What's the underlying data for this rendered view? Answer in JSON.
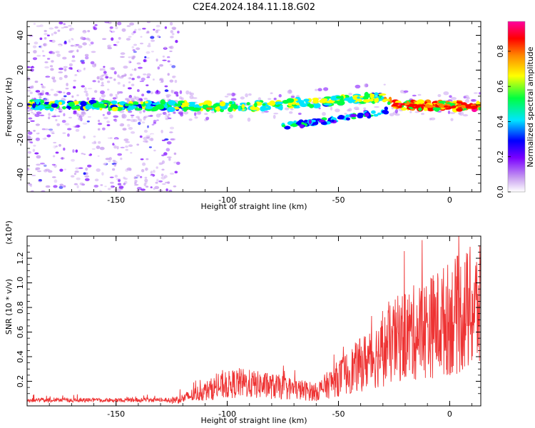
{
  "title": "C2E4.2024.184.11.18.G02",
  "chart_data": [
    {
      "type": "heatmap",
      "xlabel": "Height of straight line (km)",
      "ylabel": "Frequency (Hz)",
      "xlim": [
        -190,
        14
      ],
      "ylim": [
        -50,
        48
      ],
      "xticks": [
        -150,
        -100,
        -50,
        0
      ],
      "yticks": [
        -40,
        -20,
        0,
        20,
        40
      ],
      "colorbar": {
        "label": "Normalized spectral amplitude",
        "range": [
          0.0,
          0.97
        ],
        "ticks": [
          0.0,
          0.2,
          0.4,
          0.6,
          0.8
        ],
        "colors": [
          "#ffffff",
          "#c9a0f0",
          "#7a00ff",
          "#0000ff",
          "#00e5ff",
          "#00ff40",
          "#ffff00",
          "#ff8800",
          "#ff0000",
          "#ff00a0"
        ]
      },
      "main_band": [
        {
          "x": -190,
          "y": 0
        },
        {
          "x": -120,
          "y": -0.5
        },
        {
          "x": -100,
          "y": -1
        },
        {
          "x": -80,
          "y": 0
        },
        {
          "x": -60,
          "y": 1.5
        },
        {
          "x": -40,
          "y": 3.5
        },
        {
          "x": -30,
          "y": 4.5
        },
        {
          "x": -25,
          "y": 0
        },
        {
          "x": 14,
          "y": -1
        }
      ],
      "secondary_band": [
        {
          "x": -75,
          "y": -12
        },
        {
          "x": -60,
          "y": -10
        },
        {
          "x": -45,
          "y": -7
        },
        {
          "x": -35,
          "y": -5
        },
        {
          "x": -28,
          "y": -3
        }
      ],
      "noise_region": [
        -190,
        -122
      ]
    },
    {
      "type": "line",
      "xlabel": "Height of straight line (km)",
      "ylabel": "SNR (10 * v/v)",
      "yscale_label": "(x10⁴)",
      "xlim": [
        -190,
        14
      ],
      "ylim": [
        0,
        1.38
      ],
      "xticks": [
        -150,
        -100,
        -50,
        0
      ],
      "yticks": [
        0.2,
        0.4,
        0.6,
        0.8,
        1.0,
        1.2
      ],
      "series_color": "#ee3333",
      "envelope": [
        {
          "x": -190,
          "y": 0.05
        },
        {
          "x": -125,
          "y": 0.06
        },
        {
          "x": -120,
          "y": 0.08
        },
        {
          "x": -105,
          "y": 0.2
        },
        {
          "x": -95,
          "y": 0.25
        },
        {
          "x": -75,
          "y": 0.2
        },
        {
          "x": -60,
          "y": 0.15
        },
        {
          "x": -50,
          "y": 0.3
        },
        {
          "x": -40,
          "y": 0.45
        },
        {
          "x": -30,
          "y": 0.6
        },
        {
          "x": -22,
          "y": 0.75
        },
        {
          "x": -15,
          "y": 0.8
        },
        {
          "x": -5,
          "y": 0.9
        },
        {
          "x": 0,
          "y": 0.95
        },
        {
          "x": 5,
          "y": 1.0
        },
        {
          "x": 10,
          "y": 1.05
        },
        {
          "x": 14,
          "y": 1.05
        }
      ]
    }
  ]
}
